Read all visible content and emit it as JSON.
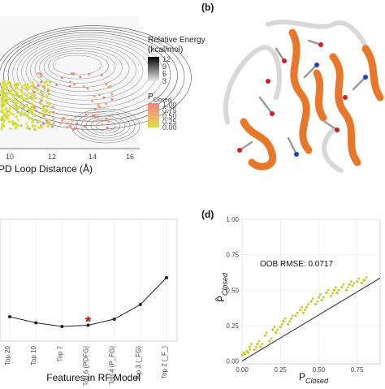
{
  "figure": {
    "panel_b_label": "(b)",
    "panel_d_label": "(d)"
  },
  "panel_a": {
    "xlabel": "PD Loop Distance (Å)",
    "x_ticks": [
      "10",
      "12",
      "14",
      "16"
    ],
    "legend_energy_title_line1": "Relative Energy",
    "legend_energy_title_line2": "(kcal/mol)",
    "legend_energy_ticks": [
      "12",
      "9",
      "6",
      "3"
    ],
    "legend_p_title_main": "P",
    "legend_p_title_sub": "Closed",
    "legend_p_ticks": [
      "1.00",
      "0.75",
      "0.50",
      "0.25",
      "0.00"
    ],
    "colors": {
      "high": "#f08070",
      "mid": "#f0a070",
      "low": "#d8e040"
    }
  },
  "panel_c": {
    "xlabel": "Features in RF Model",
    "categories": [
      "Top 20",
      "Top 10",
      "Top 7",
      "Top 6 (PDFG)",
      "Top 4 (P_FG)",
      "Top 3 (_FG)",
      "Top 2 (_F_)"
    ],
    "asterisk": "*",
    "asterisk_color": "#cc0000"
  },
  "panel_d": {
    "annotation": "OOB RMSE: 0.0717",
    "ylabel_main": "P̂",
    "ylabel_sub": "Closed",
    "xlabel_main": "P",
    "xlabel_sub": "Closed",
    "y_ticks": [
      "1.00",
      "0.75",
      "0.50",
      "0.25",
      "0.00"
    ],
    "x_ticks": [
      "0.00",
      "0.25",
      "0.50",
      "0.75"
    ],
    "point_color": "#c8c830"
  },
  "chart_data": [
    {
      "type": "line",
      "panel": "c",
      "categories": [
        "Top 20",
        "Top 10",
        "Top 7",
        "Top 6 (PDFG)",
        "Top 4 (P_FG)",
        "Top 3 (_FG)",
        "Top 2 (_F_)"
      ],
      "values": [
        0.2,
        0.15,
        0.12,
        0.13,
        0.18,
        0.3,
        0.52
      ],
      "xlabel": "Features in RF Model",
      "ylabel": ""
    },
    {
      "type": "scatter",
      "panel": "d",
      "xlabel": "P Closed",
      "ylabel": "P̂ Closed",
      "xlim": [
        0,
        0.9
      ],
      "ylim": [
        -0.02,
        1.0
      ],
      "x": [
        0.0,
        0.02,
        0.04,
        0.05,
        0.08,
        0.1,
        0.12,
        0.15,
        0.18,
        0.2,
        0.22,
        0.25,
        0.27,
        0.3,
        0.32,
        0.35,
        0.38,
        0.4,
        0.42,
        0.45,
        0.48,
        0.5,
        0.52,
        0.55,
        0.58,
        0.6,
        0.62,
        0.65,
        0.68,
        0.7,
        0.72,
        0.75,
        0.78,
        0.8
      ],
      "y": [
        0.04,
        0.05,
        0.06,
        0.1,
        0.08,
        0.12,
        0.1,
        0.18,
        0.14,
        0.22,
        0.2,
        0.24,
        0.28,
        0.26,
        0.3,
        0.32,
        0.36,
        0.34,
        0.38,
        0.42,
        0.4,
        0.45,
        0.43,
        0.48,
        0.46,
        0.5,
        0.48,
        0.52,
        0.5,
        0.54,
        0.53,
        0.56,
        0.55,
        0.57
      ]
    }
  ]
}
